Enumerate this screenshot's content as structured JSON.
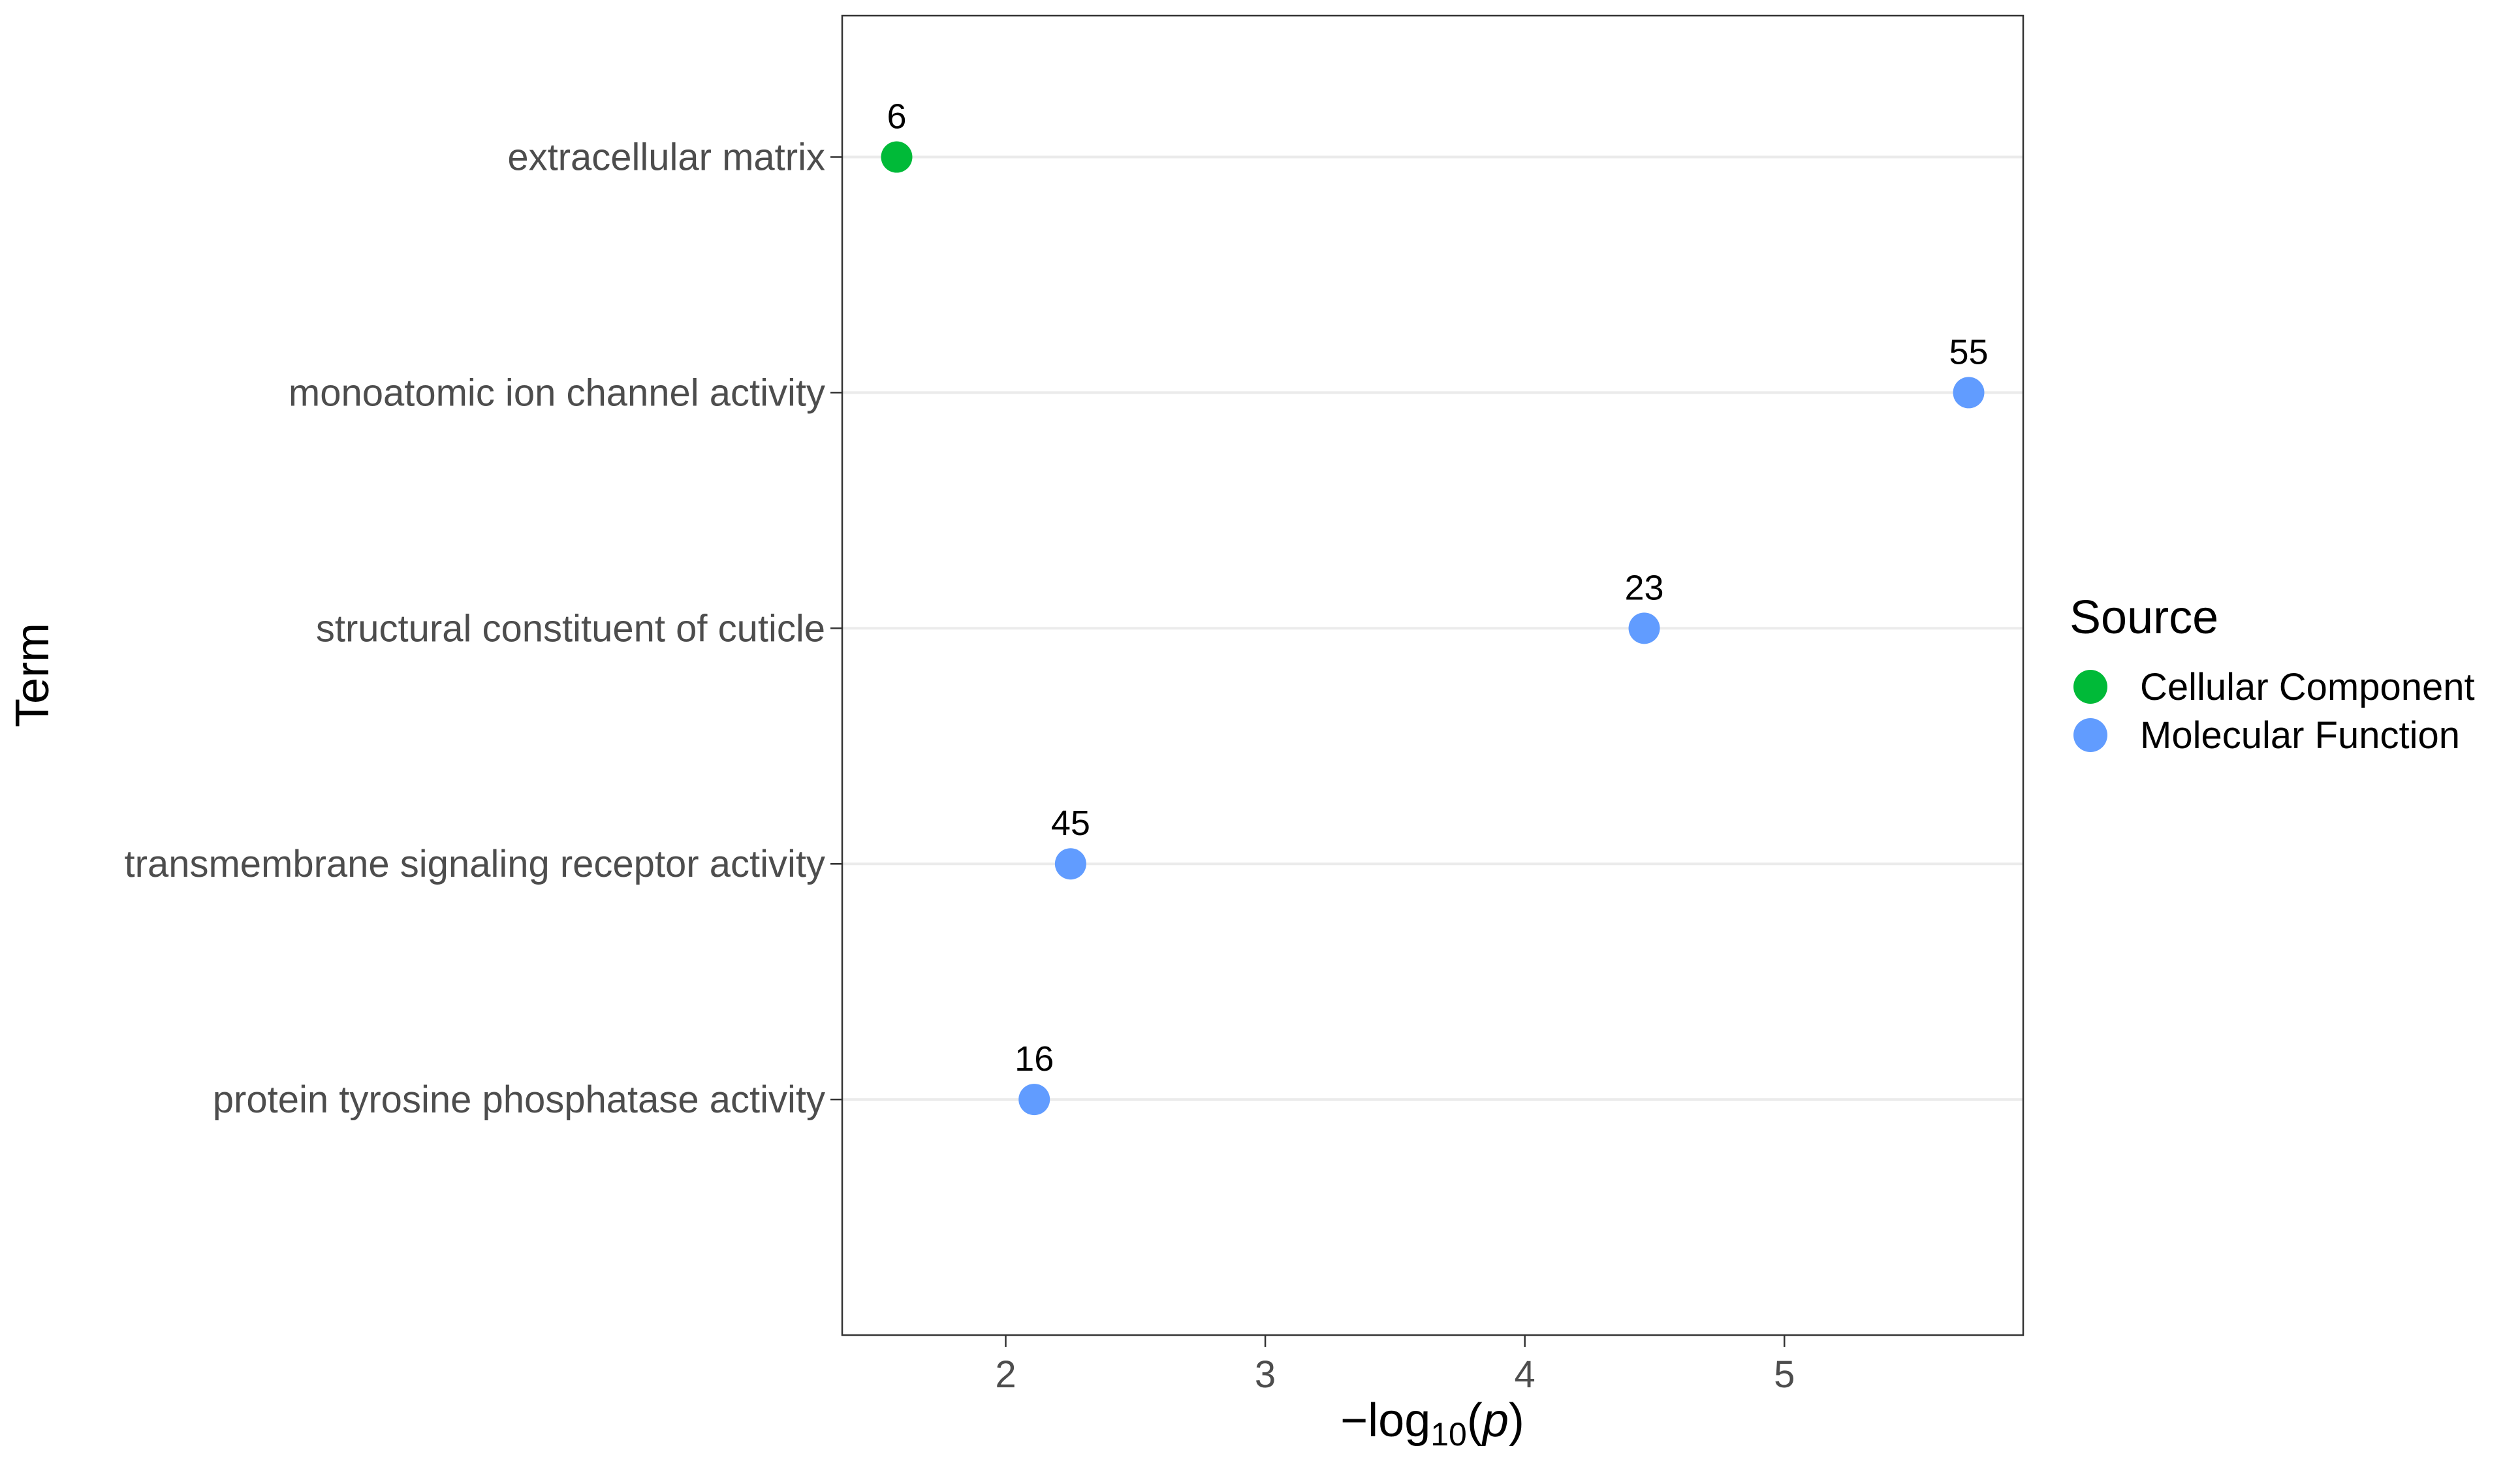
{
  "chart_data": {
    "type": "scatter",
    "xlabel": {
      "prefix": "−log",
      "subscript": "10",
      "open": "(",
      "var": "p",
      "close": ")"
    },
    "ylabel": "Term",
    "xlim": [
      1.37,
      5.92
    ],
    "x_ticks": [
      2,
      3,
      4,
      5
    ],
    "categories": [
      "extracellular matrix",
      "monoatomic ion channel activity",
      "structural constituent of cuticle",
      "transmembrane signaling receptor activity",
      "protein tyrosine phosphatase activity"
    ],
    "points": [
      {
        "term": "extracellular matrix",
        "x": 1.58,
        "label": "6",
        "source": "Cellular Component"
      },
      {
        "term": "monoatomic ion channel activity",
        "x": 5.71,
        "label": "55",
        "source": "Molecular Function"
      },
      {
        "term": "structural constituent of cuticle",
        "x": 4.46,
        "label": "23",
        "source": "Molecular Function"
      },
      {
        "term": "transmembrane signaling receptor activity",
        "x": 2.25,
        "label": "45",
        "source": "Molecular Function"
      },
      {
        "term": "protein tyrosine phosphatase activity",
        "x": 2.11,
        "label": "16",
        "source": "Molecular Function"
      }
    ],
    "legend": {
      "title": "Source",
      "position": "right",
      "entries": [
        {
          "name": "Cellular Component",
          "color": "#00BA38"
        },
        {
          "name": "Molecular Function",
          "color": "#619CFF"
        }
      ]
    },
    "grid": {
      "major_y": true,
      "major_x": false
    }
  }
}
